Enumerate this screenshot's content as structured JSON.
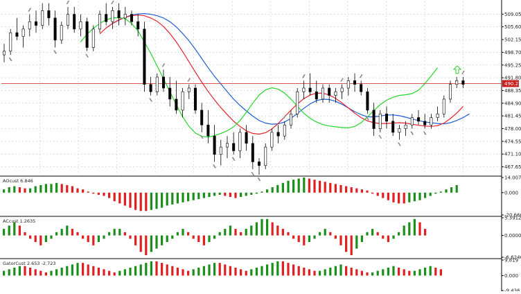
{
  "colors": {
    "background": "#ffffff",
    "grid": "#c8c8c8",
    "bull_body": "#ffffff",
    "bear_body": "#000000",
    "wick": "#000000",
    "jaw": "#1f5fd6",
    "teeth": "#e8202a",
    "lips": "#22d82a",
    "price_line": "#c81e1e",
    "price_tag_bg": "#c81e1e",
    "price_tag_text": "#ffffff",
    "fractal": "#8a8a8a",
    "hist_up": "#1a8f1a",
    "hist_down": "#e02020",
    "arrow": "#33cc33",
    "separator": "#000000",
    "axis_text": "#222222"
  },
  "chart_data": [
    {
      "type": "candlestick",
      "panel": "price",
      "ylim": [
        465.5,
        512.5
      ],
      "y_ticks": [
        "509.05",
        "505.60",
        "502.15",
        "498.70",
        "495.25",
        "491.80",
        "488.35",
        "484.90",
        "481.45",
        "478.00",
        "474.55",
        "471.10",
        "467.65"
      ],
      "current_price": 490.22,
      "current_price_label": "490.22",
      "candles": [
        [
          498,
          501,
          496,
          499
        ],
        [
          499,
          505,
          498,
          504
        ],
        [
          504,
          508,
          502,
          503
        ],
        [
          503,
          506,
          500,
          505
        ],
        [
          505,
          509,
          503,
          507
        ],
        [
          507,
          510,
          504,
          506
        ],
        [
          506,
          512,
          505,
          510
        ],
        [
          510,
          512,
          506,
          508
        ],
        [
          508,
          510,
          500,
          502
        ],
        [
          502,
          507,
          501,
          506
        ],
        [
          506,
          511,
          505,
          509
        ],
        [
          509,
          511,
          504,
          505
        ],
        [
          505,
          509,
          503,
          507
        ],
        [
          507,
          508,
          499,
          500
        ],
        [
          500,
          506,
          499,
          505
        ],
        [
          505,
          510,
          504,
          509
        ],
        [
          509,
          512,
          506,
          507
        ],
        [
          507,
          511,
          505,
          510
        ],
        [
          510,
          512,
          506,
          508
        ],
        [
          508,
          511,
          506,
          509
        ],
        [
          509,
          510,
          506,
          507
        ],
        [
          507,
          509,
          503,
          505
        ],
        [
          505,
          507,
          488,
          490
        ],
        [
          490,
          492,
          487,
          488
        ],
        [
          488,
          493,
          487,
          492
        ],
        [
          492,
          494,
          488,
          489
        ],
        [
          489,
          492,
          484,
          486
        ],
        [
          486,
          491,
          482,
          483
        ],
        [
          483,
          489,
          481,
          488
        ],
        [
          488,
          490,
          486,
          489
        ],
        [
          489,
          490,
          482,
          483
        ],
        [
          483,
          485,
          477,
          479
        ],
        [
          479,
          483,
          474,
          476
        ],
        [
          476,
          479,
          469,
          471
        ],
        [
          471,
          475,
          468,
          473
        ],
        [
          473,
          476,
          470,
          474
        ],
        [
          474,
          477,
          471,
          472
        ],
        [
          472,
          478,
          470,
          477
        ],
        [
          477,
          479,
          472,
          474
        ],
        [
          474,
          476,
          467,
          469
        ],
        [
          469,
          470,
          465.5,
          468
        ],
        [
          468,
          474,
          467,
          473
        ],
        [
          473,
          478,
          472,
          477
        ],
        [
          477,
          479,
          474,
          476
        ],
        [
          476,
          480,
          475,
          479
        ],
        [
          479,
          483,
          478,
          482
        ],
        [
          482,
          489,
          481,
          488
        ],
        [
          488,
          491,
          486,
          489
        ],
        [
          489,
          493,
          487,
          488
        ],
        [
          488,
          491,
          485,
          486
        ],
        [
          486,
          490,
          485,
          489
        ],
        [
          489,
          490,
          485,
          487
        ],
        [
          487,
          489,
          485,
          488
        ],
        [
          488,
          490,
          486,
          489
        ],
        [
          489,
          492,
          487,
          491
        ],
        [
          491,
          493,
          488,
          490
        ],
        [
          490,
          491,
          487,
          488
        ],
        [
          488,
          489,
          482,
          483
        ],
        [
          483,
          485,
          476,
          478
        ],
        [
          478,
          483,
          477,
          482
        ],
        [
          482,
          484,
          478,
          480
        ],
        [
          480,
          482,
          476,
          477
        ],
        [
          477,
          479,
          475,
          478
        ],
        [
          478,
          480,
          476,
          479
        ],
        [
          479,
          482,
          478,
          481
        ],
        [
          481,
          483,
          479,
          480
        ],
        [
          480,
          482,
          478,
          479
        ],
        [
          479,
          482,
          478,
          481
        ],
        [
          481,
          484,
          480,
          482
        ],
        [
          482,
          487,
          481,
          486
        ],
        [
          486,
          491,
          485,
          490
        ],
        [
          490,
          492,
          489,
          491
        ],
        [
          491,
          492,
          489,
          490
        ]
      ],
      "alligator": {
        "jaw": [
          505.3,
          506.5,
          507.4,
          508.2,
          508.8,
          509.1,
          509.2,
          509.0,
          508.6,
          508.0,
          507.0,
          505.6,
          503.8,
          501.8,
          499.5,
          497.0,
          494.5,
          492.2,
          490.1,
          488.0,
          486.0,
          484.3,
          482.8,
          481.4,
          480.2,
          479.5,
          479.2,
          479.3,
          479.8,
          480.8,
          482.1,
          483.5,
          484.7,
          485.6,
          486.0,
          485.9,
          485.4,
          484.6,
          483.6,
          482.6,
          481.8,
          481.2,
          481.2,
          481.4,
          481.7,
          481.7,
          481.5,
          481.1,
          480.6,
          480.2,
          479.8,
          479.6,
          479.4,
          479.3,
          479.6,
          480.2,
          481.0,
          482.0
        ],
        "teeth": [
          503.7,
          505.3,
          506.5,
          507.5,
          508.2,
          508.6,
          508.8,
          508.6,
          508.0,
          507.1,
          505.7,
          503.8,
          501.5,
          498.9,
          496.1,
          493.3,
          490.6,
          488.1,
          485.8,
          483.7,
          481.8,
          480.0,
          478.6,
          477.4,
          476.7,
          476.5,
          476.9,
          477.9,
          479.4,
          481.2,
          483.0,
          484.7,
          486.1,
          487.1,
          487.6,
          487.6,
          487.1,
          486.2,
          485.0,
          483.6,
          482.2,
          481.0,
          480.1,
          479.6,
          479.4,
          479.4,
          479.5,
          479.6,
          479.5,
          479.2,
          478.9,
          478.7,
          478.6,
          478.8,
          479.5,
          480.7,
          482.2,
          484.0
        ],
        "lips": [
          501.5,
          503.6,
          505.2,
          506.5,
          507.5,
          508.0,
          508.1,
          507.8,
          506.5,
          504.5,
          501.5,
          498.4,
          495.0,
          491.5,
          488.0,
          484.5,
          481.2,
          478.6,
          476.8,
          475.9,
          475.7,
          476.1,
          476.7,
          477.4,
          478.5,
          480.2,
          482.4,
          484.9,
          487.1,
          488.5,
          489.1,
          488.7,
          487.6,
          486.0,
          484.1,
          482.2,
          480.8,
          479.8,
          479.1,
          478.7,
          478.5,
          478.3,
          478.2,
          478.6,
          479.6,
          481.2,
          482.9,
          484.5,
          485.7,
          486.5,
          487.0,
          487.2,
          487.5,
          488.4,
          490.2,
          492.3,
          494.5
        ]
      },
      "fractals_up": [
        4,
        10,
        17,
        25,
        29,
        44,
        47,
        53,
        56,
        72
      ],
      "fractals_down": [
        1,
        8,
        13,
        23,
        31,
        33,
        36,
        39,
        40,
        57,
        59,
        62,
        64,
        66
      ],
      "signal_arrow": "up"
    },
    {
      "type": "bar",
      "panel": "AOcust",
      "label": "AOcust 6.846",
      "y_ticks": [
        "14.007",
        "0.000",
        "-20.666"
      ],
      "ylim": [
        -20.666,
        14.007
      ],
      "values": [
        3,
        5,
        6,
        5,
        4,
        4,
        6,
        7,
        8,
        8,
        9,
        8,
        7,
        6,
        4,
        3,
        1,
        -1,
        -2,
        -3,
        -5,
        -8,
        -10,
        -12,
        -14,
        -16,
        -17,
        -17,
        -16,
        -15,
        -14,
        -12,
        -11,
        -10,
        -9,
        -8,
        -7,
        -6,
        -5,
        -4,
        -3,
        -2,
        -3,
        -4,
        -5,
        -4,
        -3,
        -2,
        -1,
        1,
        3,
        5,
        7,
        9,
        11,
        12,
        13,
        14,
        13,
        12,
        11,
        10,
        9,
        8,
        7,
        6,
        5,
        4,
        3,
        2,
        -1,
        -3,
        -5,
        -7,
        -9,
        -10,
        -10,
        -9,
        -8,
        -7,
        -5,
        -3,
        -1,
        1,
        3,
        5,
        7
      ],
      "colors": [
        "up",
        "up",
        "up",
        "down",
        "down",
        "up",
        "up",
        "up",
        "up",
        "up",
        "up",
        "down",
        "down",
        "down",
        "down",
        "down",
        "down",
        "down",
        "down",
        "down",
        "down",
        "down",
        "down",
        "down",
        "down",
        "down",
        "down",
        "down",
        "up",
        "up",
        "up",
        "up",
        "up",
        "up",
        "up",
        "up",
        "up",
        "up",
        "up",
        "up",
        "up",
        "up",
        "down",
        "down",
        "down",
        "up",
        "up",
        "up",
        "up",
        "up",
        "up",
        "up",
        "up",
        "up",
        "up",
        "up",
        "up",
        "up",
        "down",
        "down",
        "down",
        "down",
        "down",
        "down",
        "down",
        "down",
        "down",
        "down",
        "down",
        "down",
        "down",
        "down",
        "down",
        "down",
        "down",
        "down",
        "down",
        "up",
        "up",
        "up",
        "up",
        "up",
        "up",
        "up",
        "up",
        "up",
        "up"
      ]
    },
    {
      "type": "bar",
      "panel": "ACcust",
      "label": "ACcust 1.2635",
      "y_ticks": [
        "5.3912",
        "0.0000",
        "-6.6246"
      ],
      "ylim": [
        -6.6246,
        5.3912
      ],
      "values": [
        2,
        3,
        4,
        3,
        1,
        -1,
        -2,
        -3,
        -2,
        -1,
        1,
        2,
        3,
        2,
        1,
        -1,
        -2,
        -3,
        -2,
        -1,
        1,
        2,
        2,
        1,
        -1,
        -3,
        -5,
        -6,
        -5,
        -4,
        -3,
        -2,
        -1,
        1,
        2,
        1,
        -1,
        -2,
        -3,
        -2,
        -1,
        1,
        2,
        3,
        2,
        1,
        2,
        3,
        4,
        5,
        5,
        4,
        3,
        2,
        1,
        -1,
        -2,
        -3,
        -2,
        -1,
        1,
        2,
        1,
        -1,
        -3,
        -5,
        -6,
        -4,
        -2,
        1,
        2,
        1,
        -1,
        -2,
        -1,
        1,
        3,
        4,
        5,
        4,
        2
      ],
      "colors": [
        "up",
        "up",
        "up",
        "down",
        "down",
        "down",
        "down",
        "down",
        "up",
        "up",
        "up",
        "up",
        "up",
        "down",
        "down",
        "down",
        "down",
        "down",
        "up",
        "up",
        "up",
        "up",
        "up",
        "down",
        "down",
        "down",
        "down",
        "down",
        "up",
        "up",
        "up",
        "up",
        "up",
        "up",
        "up",
        "down",
        "down",
        "down",
        "down",
        "up",
        "up",
        "up",
        "up",
        "up",
        "down",
        "down",
        "up",
        "up",
        "up",
        "up",
        "up",
        "down",
        "down",
        "down",
        "down",
        "down",
        "down",
        "down",
        "up",
        "up",
        "up",
        "up",
        "down",
        "down",
        "down",
        "down",
        "down",
        "up",
        "up",
        "up",
        "up",
        "down",
        "down",
        "down",
        "up",
        "up",
        "up",
        "up",
        "up",
        "down",
        "down"
      ]
    },
    {
      "type": "bar",
      "panel": "GatorCust",
      "label": "GatorCust 2.653 -2.723",
      "y_ticks": [
        "9.819",
        "0.000",
        "-9.436"
      ],
      "ylim": [
        -9.436,
        9.819
      ],
      "upper": [
        3,
        4,
        5,
        6,
        6,
        5,
        4,
        3,
        2,
        3,
        4,
        5,
        6,
        7,
        8,
        8,
        7,
        6,
        5,
        4,
        3,
        2,
        3,
        4,
        5,
        6,
        7,
        8,
        9,
        9,
        8,
        7,
        6,
        5,
        4,
        3,
        4,
        5,
        6,
        7,
        8,
        8,
        7,
        6,
        5,
        4,
        3,
        4,
        5,
        6,
        7,
        8,
        9,
        9,
        8,
        7,
        6,
        5,
        4,
        3,
        3,
        4,
        5,
        6,
        7,
        6,
        5,
        4,
        3,
        2,
        2,
        3,
        4,
        5,
        6,
        5,
        4,
        3,
        3,
        4,
        5,
        6,
        5,
        4
      ],
      "upper_colors": [
        "up",
        "up",
        "up",
        "up",
        "down",
        "down",
        "down",
        "down",
        "down",
        "up",
        "up",
        "up",
        "up",
        "up",
        "up",
        "down",
        "down",
        "down",
        "down",
        "down",
        "down",
        "down",
        "up",
        "up",
        "up",
        "up",
        "up",
        "up",
        "up",
        "down",
        "down",
        "down",
        "down",
        "down",
        "down",
        "down",
        "up",
        "up",
        "up",
        "up",
        "up",
        "down",
        "down",
        "down",
        "down",
        "down",
        "down",
        "up",
        "up",
        "up",
        "up",
        "up",
        "up",
        "down",
        "down",
        "down",
        "down",
        "down",
        "down",
        "down",
        "up",
        "up",
        "up",
        "up",
        "up",
        "down",
        "down",
        "down",
        "down",
        "down",
        "up",
        "up",
        "up",
        "up",
        "up",
        "down",
        "down",
        "down",
        "up",
        "up",
        "up",
        "up",
        "down",
        "down"
      ]
    }
  ]
}
